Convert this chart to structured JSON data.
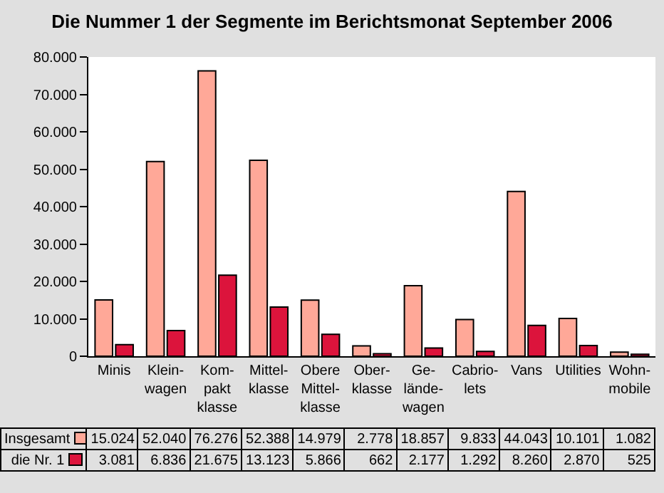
{
  "chart_data": {
    "type": "bar",
    "title": "Die Nummer 1 der Segmente im Berichtsmonat September 2006",
    "categories": [
      "Minis",
      "Klein-\nwagen",
      "Kom-\npakt\nklasse",
      "Mittel-\nklasse",
      "Obere\nMittel-\nklasse",
      "Ober-\nklasse",
      "Ge-\nlände-\nwagen",
      "Cabrio-\nlets",
      "Vans",
      "Utilities",
      "Wohn-\nmobile"
    ],
    "series": [
      {
        "name": "Insgesamt",
        "color": "#ffa898",
        "values": [
          15024,
          52040,
          76276,
          52388,
          14979,
          2778,
          18857,
          9833,
          44043,
          10101,
          1082
        ],
        "value_labels": [
          "15.024",
          "52.040",
          "76.276",
          "52.388",
          "14.979",
          "2.778",
          "18.857",
          "9.833",
          "44.043",
          "10.101",
          "1.082"
        ]
      },
      {
        "name": "die Nr. 1",
        "color": "#dc143c",
        "values": [
          3081,
          6836,
          21675,
          13123,
          5866,
          662,
          2177,
          1292,
          8260,
          2870,
          525
        ],
        "value_labels": [
          "3.081",
          "6.836",
          "21.675",
          "13.123",
          "5.866",
          "662",
          "2.177",
          "1.292",
          "8.260",
          "2.870",
          "525"
        ]
      }
    ],
    "ylim": [
      0,
      80000
    ],
    "yticks": [
      0,
      {
        "value": 10000,
        "label": "10.000"
      },
      {
        "value": 20000,
        "label": "20.000"
      },
      {
        "value": 30000,
        "label": "30.000"
      },
      {
        "value": 40000,
        "label": "40.000"
      },
      {
        "value": 50000,
        "label": "50.000"
      },
      {
        "value": 60000,
        "label": "60.000"
      },
      {
        "value": 70000,
        "label": "70.000"
      },
      {
        "value": 80000,
        "label": "80.000"
      }
    ],
    "grid": false,
    "legend": "bottom"
  }
}
